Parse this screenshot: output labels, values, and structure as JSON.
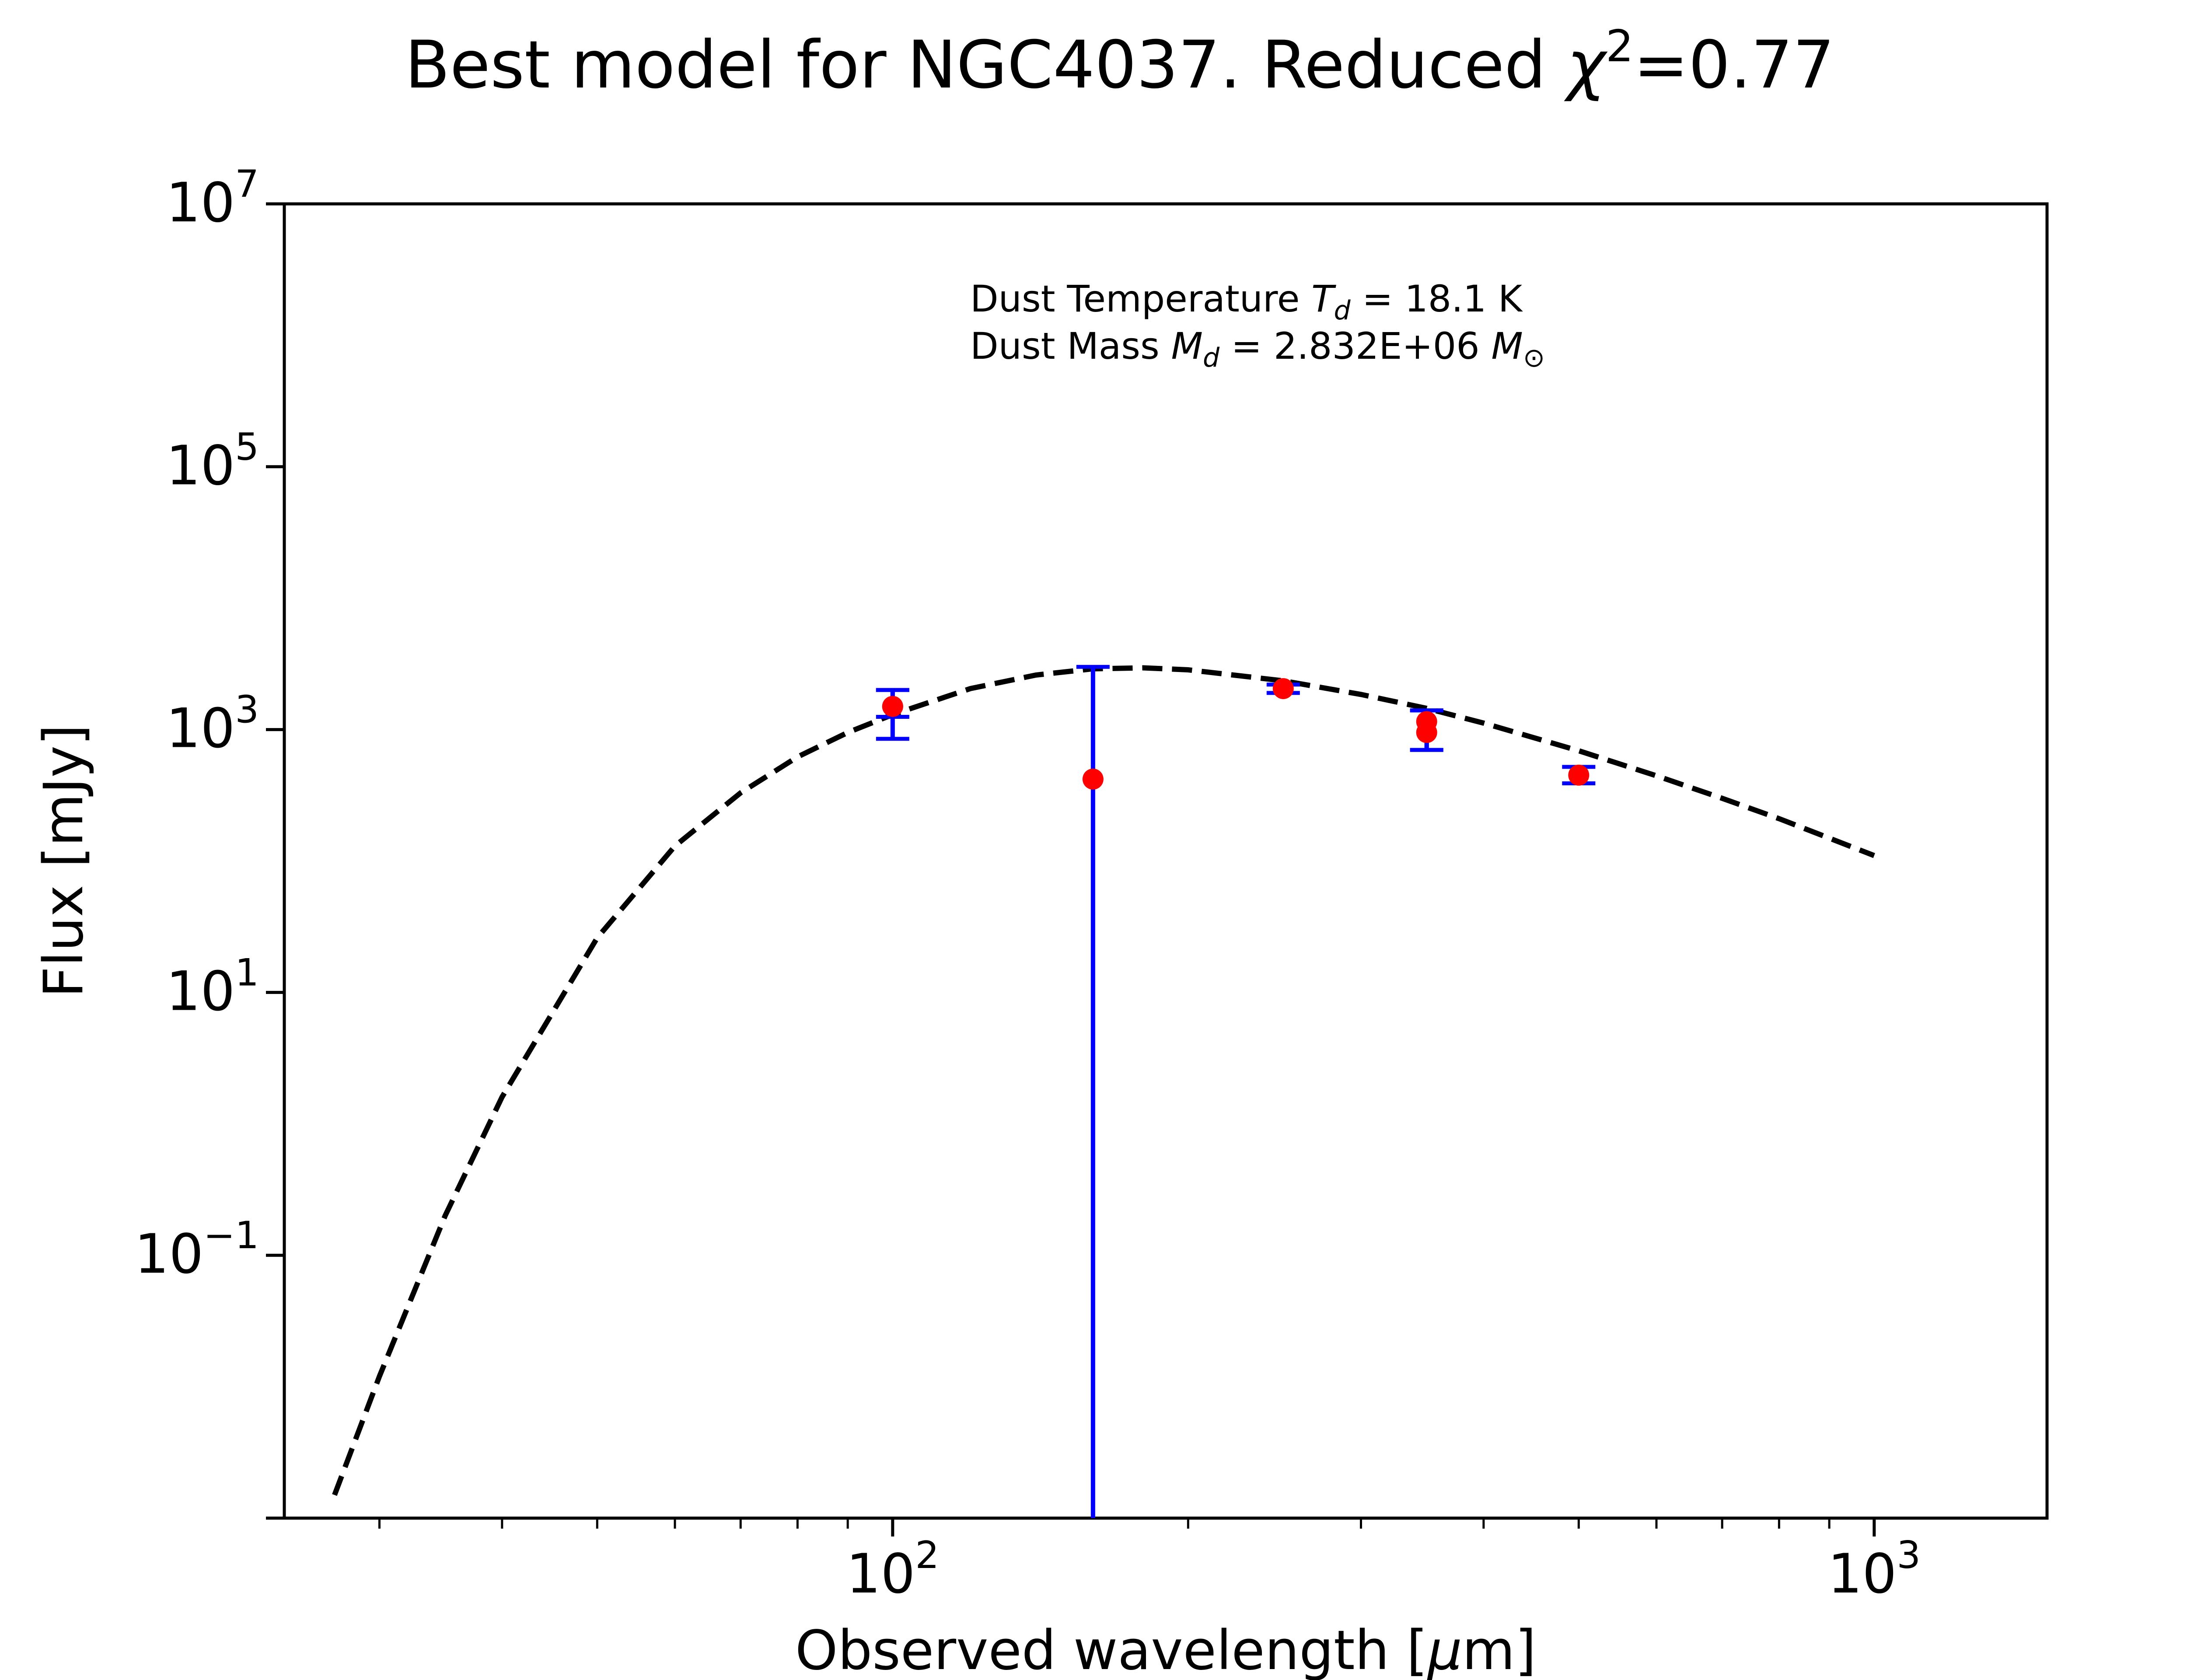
{
  "chart_data": {
    "type": "scatter",
    "title": "Best model for NGC4037. Reduced χ²=0.77",
    "title_parts": {
      "prefix": "Best model for NGC4037. Reduced ",
      "chi": "χ",
      "exp": "2",
      "suffix": "=0.77"
    },
    "xlabel": "Observed wavelength [μm]",
    "xlabel_parts": {
      "prefix": "Observed wavelength [",
      "mu": "μ",
      "suffix": "m]"
    },
    "ylabel": "Flux [mJy]",
    "x_scale": "log",
    "y_scale": "log",
    "xlim": [
      24,
      1500
    ],
    "ylim": [
      0.001,
      10000000
    ],
    "x_ticks": [
      {
        "value": 100,
        "base": "10",
        "exp": "2"
      },
      {
        "value": 1000,
        "base": "10",
        "exp": "3"
      }
    ],
    "y_ticks": [
      {
        "value": 0.1,
        "base": "10",
        "exp": "−1"
      },
      {
        "value": 10,
        "base": "10",
        "exp": "1"
      },
      {
        "value": 1000,
        "base": "10",
        "exp": "3"
      },
      {
        "value": 100000,
        "base": "10",
        "exp": "5"
      },
      {
        "value": 10000000,
        "base": "10",
        "exp": "7"
      }
    ],
    "annotation": {
      "line1": {
        "prefix": "Dust Temperature ",
        "sym": "T",
        "sub": "d",
        "suffix": " = 18.1 K"
      },
      "line2": {
        "prefix": "Dust Mass ",
        "sym": "M",
        "sub": "d",
        "mid": " = 2.832E+06 ",
        "sym2": "M",
        "sub2": "⊙"
      }
    },
    "model": {
      "style": "dashed",
      "color": "#000000",
      "x": [
        27,
        30,
        35,
        40,
        50,
        60,
        70,
        80,
        90,
        100,
        120,
        140,
        160,
        180,
        200,
        250,
        300,
        350,
        400,
        500,
        600,
        700,
        800,
        1000
      ],
      "y": [
        0.0015,
        0.012,
        0.2,
        1.6,
        26,
        130,
        330,
        620,
        950,
        1300,
        2050,
        2600,
        2900,
        2950,
        2850,
        2350,
        1850,
        1450,
        1120,
        690,
        445,
        300,
        210,
        110
      ]
    },
    "measurements": {
      "marker_color": "#ff0000",
      "errorbar_color": "#0000ff",
      "points": [
        {
          "x": 100,
          "y": 1500,
          "yerr_low": 650,
          "yerr_high": 500
        },
        {
          "x": 100,
          "y": 1500,
          "yerr_low": 250,
          "yerr_high": 500
        },
        {
          "x": 160,
          "y": 420,
          "yerr_low": 419.999,
          "yerr_high": 2580
        },
        {
          "x": 250,
          "y": 2050,
          "yerr_low": 150,
          "yerr_high": 150
        },
        {
          "x": 350,
          "y": 1150,
          "yerr_low": 450,
          "yerr_high": 250
        },
        {
          "x": 350,
          "y": 950,
          "yerr_low": 250,
          "yerr_high": 450
        },
        {
          "x": 500,
          "y": 450,
          "yerr_low": 60,
          "yerr_high": 70
        }
      ]
    }
  }
}
